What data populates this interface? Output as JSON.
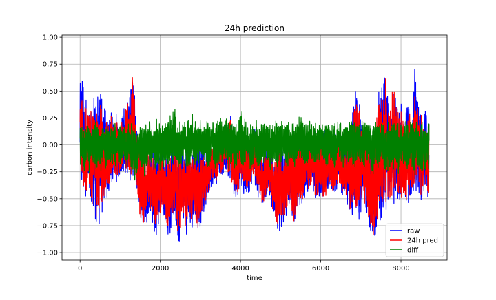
{
  "chart_data": {
    "type": "line",
    "title": "24h prediction",
    "xlabel": "time",
    "ylabel": "carbon intensity",
    "xlim": [
      -450,
      9150
    ],
    "ylim": [
      -1.07,
      1.02
    ],
    "x_ticks": [
      0,
      2000,
      4000,
      6000,
      8000
    ],
    "x_tick_labels": [
      "0",
      "2000",
      "4000",
      "6000",
      "8000"
    ],
    "y_ticks": [
      -1.0,
      -0.75,
      -0.5,
      -0.25,
      0.0,
      0.25,
      0.5,
      0.75,
      1.0
    ],
    "y_tick_labels": [
      "−1.00",
      "−0.75",
      "−0.50",
      "−0.25",
      "0.00",
      "0.25",
      "0.50",
      "0.75",
      "1.00"
    ],
    "grid": true,
    "legend_position": "lower-right",
    "x_range": [
      0,
      8700
    ],
    "sample_step": 50,
    "series": [
      {
        "name": "raw",
        "color": "#0000ff",
        "lows": [
          -0.25,
          -0.35,
          -0.55,
          -0.5,
          -0.45,
          -0.55,
          -0.65,
          -0.7,
          -0.75,
          -0.8,
          -0.7,
          -0.65,
          -0.6,
          -0.55,
          -0.5,
          -0.4,
          -0.35,
          -0.3,
          -0.4,
          -0.35,
          -0.3,
          -0.3,
          -0.25,
          -0.3,
          -0.3,
          -0.35,
          -0.4,
          -0.35,
          -0.45,
          -0.6,
          -0.75,
          -0.85,
          -0.8,
          -0.75,
          -0.7,
          -0.65,
          -0.75,
          -0.8,
          -0.85,
          -0.75,
          -0.7,
          -0.65,
          -0.7,
          -0.8,
          -0.9,
          -0.85,
          -0.75,
          -0.7,
          -0.8,
          -0.98,
          -0.85,
          -0.75,
          -0.8,
          -0.85,
          -0.7,
          -0.75,
          -0.85,
          -0.7,
          -0.8,
          -0.85,
          -0.8,
          -0.7,
          -0.65,
          -0.55,
          -0.5,
          -0.45,
          -0.4,
          -0.35,
          -0.4,
          -0.3,
          -0.35,
          -0.3,
          -0.25,
          -0.3,
          -0.35,
          -0.3,
          -0.45,
          -0.5,
          -0.55,
          -0.5,
          -0.4,
          -0.45,
          -0.5,
          -0.45,
          -0.5,
          -0.45,
          -0.4,
          -0.35,
          -0.45,
          -0.5,
          -0.55,
          -0.6,
          -0.6,
          -0.55,
          -0.5,
          -0.55,
          -0.65,
          -0.75,
          -0.8,
          -0.85,
          -0.75,
          -0.85,
          -0.75,
          -0.7,
          -0.6,
          -0.55,
          -0.75,
          -0.8,
          -0.7,
          -0.6,
          -0.55,
          -0.6,
          -0.5,
          -0.45,
          -0.5,
          -0.45,
          -0.4,
          -0.55,
          -0.6,
          -0.55,
          -0.5,
          -0.55,
          -0.6,
          -0.5,
          -0.45,
          -0.4,
          -0.5,
          -0.55,
          -0.5,
          -0.4,
          -0.45,
          -0.5,
          -0.45,
          -0.55,
          -0.6,
          -0.7,
          -0.75,
          -0.7,
          -0.75,
          -0.8,
          -0.7,
          -0.55,
          -0.6,
          -0.7,
          -0.75,
          -0.82,
          -0.9,
          -0.95,
          -0.85,
          -0.8,
          -0.75,
          -0.7,
          -0.65,
          -0.6,
          -0.55,
          -0.6,
          -0.65,
          -0.55,
          -0.5,
          -0.55,
          -0.6,
          -0.5,
          -0.55,
          -0.6,
          -0.55,
          -0.5,
          -0.55,
          -0.5,
          -0.45,
          -0.5,
          -0.55,
          -0.5,
          -0.45,
          -0.5,
          -0.55,
          -0.5
        ],
        "highs": [
          0.6,
          0.65,
          0.5,
          0.45,
          0.35,
          0.4,
          0.45,
          0.55,
          0.5,
          0.45,
          0.7,
          0.5,
          0.4,
          0.35,
          0.3,
          0.35,
          0.3,
          0.25,
          0.3,
          0.2,
          0.15,
          0.3,
          0.4,
          0.4,
          0.5,
          0.45,
          0.85,
          0.55,
          0.25,
          0.05,
          0.05,
          0.0,
          0.05,
          -0.05,
          0.0,
          -0.05,
          0.05,
          0.0,
          -0.1,
          0.0,
          0.05,
          0.0,
          -0.05,
          -0.05,
          -0.1,
          -0.05,
          0.0,
          0.05,
          -0.05,
          0.0,
          0.0,
          -0.05,
          0.05,
          0.0,
          0.05,
          -0.05,
          0.0,
          0.05,
          -0.05,
          0.0,
          0.0,
          0.05,
          -0.05,
          0.0,
          0.05,
          0.1,
          0.0,
          0.05,
          0.1,
          0.15,
          0.2,
          0.1,
          0.15,
          0.3,
          0.25,
          0.3,
          0.15,
          0.1,
          0.05,
          0.1,
          0.2,
          0.15,
          0.1,
          0.15,
          0.05,
          0.1,
          0.15,
          0.2,
          0.1,
          0.05,
          0.0,
          -0.05,
          0.0,
          0.05,
          0.1,
          0.05,
          -0.05,
          -0.1,
          0.0,
          0.05,
          0.1,
          0.0,
          0.05,
          0.1,
          0.15,
          0.1,
          0.05,
          0.1,
          0.15,
          0.1,
          0.15,
          0.1,
          0.05,
          0.1,
          0.15,
          0.05,
          0.1,
          0.15,
          0.1,
          0.05,
          0.1,
          0.15,
          0.2,
          0.1,
          0.05,
          0.1,
          0.15,
          0.2,
          0.15,
          0.1,
          0.15,
          0.05,
          0.0,
          0.05,
          0.1,
          0.2,
          0.35,
          0.5,
          0.6,
          0.45,
          0.3,
          0.25,
          0.2,
          0.15,
          0.05,
          0.0,
          0.1,
          0.2,
          0.4,
          0.55,
          0.65,
          0.45,
          0.92,
          0.6,
          0.35,
          0.4,
          0.7,
          0.55,
          0.4,
          0.35,
          0.4,
          0.3,
          0.25,
          0.4,
          0.45,
          0.3,
          0.35,
          0.85,
          0.5,
          0.4,
          0.35,
          0.3,
          0.35,
          0.3
        ]
      },
      {
        "name": "24h pred",
        "color": "#ff0000",
        "lows": [
          -0.2,
          -0.3,
          -0.5,
          -0.45,
          -0.4,
          -0.5,
          -0.6,
          -0.65,
          -0.7,
          -0.75,
          -0.65,
          -0.6,
          -0.55,
          -0.5,
          -0.45,
          -0.35,
          -0.3,
          -0.25,
          -0.35,
          -0.3,
          -0.25,
          -0.25,
          -0.2,
          -0.25,
          -0.25,
          -0.3,
          -0.35,
          -0.3,
          -0.4,
          -0.55,
          -0.7,
          -0.8,
          -0.75,
          -0.7,
          -0.65,
          -0.6,
          -0.7,
          -0.75,
          -0.8,
          -0.7,
          -0.65,
          -0.6,
          -0.65,
          -0.75,
          -0.85,
          -0.8,
          -0.7,
          -0.65,
          -0.75,
          -0.9,
          -0.8,
          -0.7,
          -0.75,
          -0.8,
          -0.65,
          -0.7,
          -0.8,
          -0.65,
          -0.75,
          -0.8,
          -0.75,
          -0.65,
          -0.6,
          -0.5,
          -0.45,
          -0.4,
          -0.35,
          -0.3,
          -0.35,
          -0.25,
          -0.3,
          -0.25,
          -0.2,
          -0.25,
          -0.3,
          -0.25,
          -0.4,
          -0.45,
          -0.5,
          -0.45,
          -0.35,
          -0.4,
          -0.45,
          -0.4,
          -0.45,
          -0.4,
          -0.35,
          -0.3,
          -0.4,
          -0.45,
          -0.5,
          -0.55,
          -0.55,
          -0.5,
          -0.45,
          -0.5,
          -0.6,
          -0.7,
          -0.75,
          -0.8,
          -0.7,
          -0.8,
          -0.7,
          -0.65,
          -0.55,
          -0.5,
          -0.7,
          -0.75,
          -0.65,
          -0.55,
          -0.5,
          -0.55,
          -0.45,
          -0.4,
          -0.45,
          -0.4,
          -0.35,
          -0.5,
          -0.55,
          -0.5,
          -0.45,
          -0.5,
          -0.55,
          -0.45,
          -0.4,
          -0.35,
          -0.45,
          -0.5,
          -0.45,
          -0.35,
          -0.4,
          -0.45,
          -0.4,
          -0.5,
          -0.55,
          -0.65,
          -0.7,
          -0.65,
          -0.7,
          -0.75,
          -0.65,
          -0.5,
          -0.55,
          -0.65,
          -0.7,
          -0.78,
          -0.85,
          -0.9,
          -0.8,
          -0.75,
          -0.7,
          -0.65,
          -0.6,
          -0.55,
          -0.5,
          -0.55,
          -0.6,
          -0.5,
          -0.45,
          -0.5,
          -0.55,
          -0.45,
          -0.5,
          -0.55,
          -0.5,
          -0.45,
          -0.5,
          -0.45,
          -0.4,
          -0.45,
          -0.5,
          -0.45,
          -0.4,
          -0.45,
          -0.5,
          -0.45
        ],
        "highs": [
          0.55,
          0.5,
          0.4,
          0.4,
          0.3,
          0.35,
          0.4,
          0.5,
          0.45,
          0.4,
          0.6,
          0.45,
          0.35,
          0.3,
          0.25,
          0.3,
          0.25,
          0.2,
          0.25,
          0.15,
          0.1,
          0.25,
          0.35,
          0.35,
          0.45,
          0.4,
          0.78,
          0.5,
          0.2,
          0.0,
          0.0,
          -0.05,
          0.0,
          -0.1,
          -0.05,
          -0.1,
          0.0,
          -0.05,
          -0.15,
          -0.05,
          0.0,
          -0.05,
          -0.1,
          -0.1,
          -0.15,
          -0.1,
          -0.05,
          0.0,
          -0.1,
          -0.05,
          -0.05,
          -0.1,
          0.0,
          -0.05,
          0.0,
          -0.1,
          -0.05,
          0.0,
          -0.1,
          -0.05,
          -0.05,
          0.0,
          -0.1,
          -0.05,
          0.0,
          0.05,
          -0.05,
          0.0,
          0.05,
          0.1,
          0.15,
          0.05,
          0.1,
          0.25,
          0.2,
          0.25,
          0.1,
          0.05,
          0.0,
          0.05,
          0.15,
          0.1,
          0.05,
          0.1,
          0.0,
          0.05,
          0.1,
          0.15,
          0.05,
          0.0,
          -0.05,
          -0.1,
          -0.05,
          0.0,
          0.05,
          0.0,
          -0.1,
          -0.15,
          -0.05,
          0.0,
          0.05,
          -0.05,
          0.0,
          0.05,
          0.1,
          0.05,
          0.0,
          0.05,
          0.1,
          0.05,
          0.1,
          0.05,
          0.0,
          0.05,
          0.1,
          0.0,
          0.05,
          0.1,
          0.05,
          0.0,
          0.05,
          0.1,
          0.15,
          0.05,
          0.0,
          0.05,
          0.1,
          0.15,
          0.1,
          0.05,
          0.1,
          0.0,
          -0.05,
          0.0,
          0.05,
          0.15,
          0.3,
          0.45,
          0.5,
          0.4,
          0.25,
          0.2,
          0.15,
          0.1,
          0.0,
          -0.05,
          0.05,
          0.15,
          0.35,
          0.5,
          0.55,
          0.4,
          0.7,
          0.5,
          0.3,
          0.35,
          0.6,
          0.45,
          0.35,
          0.3,
          0.35,
          0.25,
          0.2,
          0.35,
          0.4,
          0.25,
          0.3,
          0.65,
          0.45,
          0.35,
          0.3,
          0.25,
          0.3,
          0.25
        ]
      },
      {
        "name": "diff",
        "color": "#008000",
        "lows": [
          -0.2,
          -0.15,
          -0.3,
          -0.2,
          -0.25,
          -0.3,
          -0.15,
          -0.2,
          -0.25,
          -0.2,
          -0.3,
          -0.2,
          -0.15,
          -0.25,
          -0.2,
          -0.15,
          -0.2,
          -0.25,
          -0.2,
          -0.15,
          -0.2,
          -0.15,
          -0.2,
          -0.25,
          -0.2,
          -0.3,
          -0.25,
          -0.35,
          -0.3,
          -0.25,
          -0.2,
          -0.25,
          -0.3,
          -0.2,
          -0.25,
          -0.2,
          -0.15,
          -0.2,
          -0.25,
          -0.2,
          -0.3,
          -0.25,
          -0.2,
          -0.15,
          -0.2,
          -0.25,
          -0.2,
          -0.15,
          -0.2,
          -0.25,
          -0.3,
          -0.2,
          -0.15,
          -0.2,
          -0.25,
          -0.2,
          -0.15,
          -0.2,
          -0.25,
          -0.2,
          -0.15,
          -0.2,
          -0.15,
          -0.2,
          -0.25,
          -0.2,
          -0.15,
          -0.2,
          -0.25,
          -0.2,
          -0.15,
          -0.2,
          -0.15,
          -0.2,
          -0.25,
          -0.2,
          -0.15,
          -0.25,
          -0.2,
          -0.15,
          -0.2,
          -0.25,
          -0.2,
          -0.15,
          -0.2,
          -0.25,
          -0.2,
          -0.15,
          -0.2,
          -0.25,
          -0.2,
          -0.15,
          -0.2,
          -0.15,
          -0.2,
          -0.25,
          -0.2,
          -0.15,
          -0.2,
          -0.25,
          -0.2,
          -0.15,
          -0.2,
          -0.25,
          -0.2,
          -0.15,
          -0.2,
          -0.25,
          -0.2,
          -0.15,
          -0.2,
          -0.15,
          -0.2,
          -0.25,
          -0.2,
          -0.15,
          -0.2,
          -0.25,
          -0.2,
          -0.15,
          -0.2,
          -0.15,
          -0.2,
          -0.25,
          -0.2,
          -0.15,
          -0.2,
          -0.25,
          -0.2,
          -0.15,
          -0.2,
          -0.25,
          -0.2,
          -0.15,
          -0.2,
          -0.15,
          -0.2,
          -0.25,
          -0.2,
          -0.15,
          -0.2,
          -0.25,
          -0.2,
          -0.15,
          -0.2,
          -0.25,
          -0.3,
          -0.2,
          -0.25,
          -0.2,
          -0.15,
          -0.2,
          -0.25,
          -0.3,
          -0.2,
          -0.25,
          -0.3,
          -0.2,
          -0.25,
          -0.3,
          -0.2,
          -0.25,
          -0.2,
          -0.3,
          -0.25,
          -0.2,
          -0.3,
          -0.35,
          -0.25,
          -0.2,
          -0.3,
          -0.25
        ],
        "highs": [
          0.25,
          0.2,
          0.15,
          0.2,
          0.25,
          0.2,
          0.15,
          0.2,
          0.22,
          0.2,
          0.15,
          0.2,
          0.15,
          0.18,
          0.2,
          0.15,
          0.2,
          0.22,
          0.2,
          0.15,
          0.2,
          0.22,
          0.2,
          0.15,
          0.2,
          0.22,
          0.2,
          0.25,
          0.2,
          0.22,
          0.25,
          0.2,
          0.25,
          0.2,
          0.22,
          0.25,
          0.2,
          0.22,
          0.25,
          0.2,
          0.25,
          0.22,
          0.2,
          0.25,
          0.22,
          0.3,
          0.25,
          0.41,
          0.25,
          0.22,
          0.3,
          0.25,
          0.22,
          0.2,
          0.25,
          0.22,
          0.3,
          0.25,
          0.22,
          0.2,
          0.25,
          0.22,
          0.2,
          0.25,
          0.22,
          0.2,
          0.25,
          0.22,
          0.2,
          0.25,
          0.3,
          0.25,
          0.22,
          0.25,
          0.2,
          0.22,
          0.25,
          0.2,
          0.22,
          0.25,
          0.38,
          0.3,
          0.25,
          0.22,
          0.2,
          0.25,
          0.22,
          0.2,
          0.25,
          0.22,
          0.2,
          0.25,
          0.22,
          0.2,
          0.25,
          0.22,
          0.2,
          0.25,
          0.22,
          0.2,
          0.25,
          0.22,
          0.2,
          0.25,
          0.22,
          0.2,
          0.25,
          0.22,
          0.2,
          0.25,
          0.3,
          0.25,
          0.22,
          0.2,
          0.25,
          0.22,
          0.2,
          0.25,
          0.22,
          0.2,
          0.25,
          0.22,
          0.2,
          0.25,
          0.22,
          0.2,
          0.25,
          0.22,
          0.2,
          0.25,
          0.22,
          0.2,
          0.25,
          0.22,
          0.2,
          0.25,
          0.22,
          0.2,
          0.25,
          0.22,
          0.2,
          0.25,
          0.22,
          0.2,
          0.25,
          0.22,
          0.2,
          0.25,
          0.22,
          0.2,
          0.25,
          0.22,
          0.2,
          0.25,
          0.22,
          0.2,
          0.25,
          0.22,
          0.2,
          0.25,
          0.22,
          0.2,
          0.25,
          0.22,
          0.2,
          0.25,
          0.22,
          0.2,
          0.25,
          0.22,
          0.2,
          0.25,
          0.22,
          0.2
        ]
      }
    ]
  }
}
